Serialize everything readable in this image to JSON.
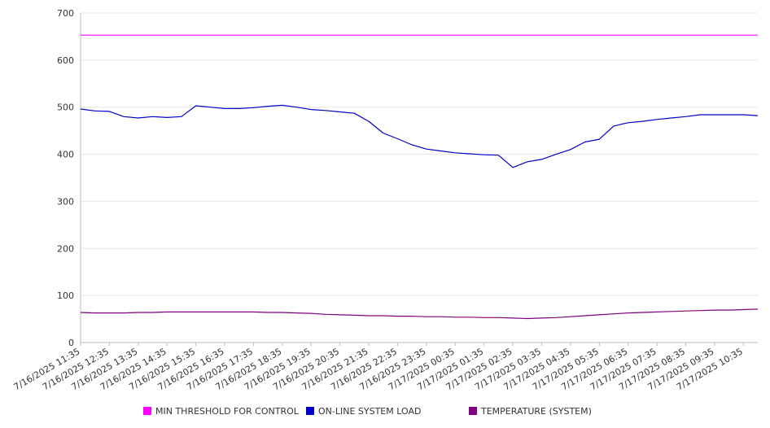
{
  "chart_data": {
    "type": "line",
    "ylim": [
      0,
      700
    ],
    "y_ticks": [
      0,
      100,
      200,
      300,
      400,
      500,
      600,
      700
    ],
    "x_tick_labels": [
      "7/16/2025 11:35",
      "7/16/2025 12:35",
      "7/16/2025 13:35",
      "7/16/2025 14:35",
      "7/16/2025 15:35",
      "7/16/2025 16:35",
      "7/16/2025 17:35",
      "7/16/2025 18:35",
      "7/16/2025 19:35",
      "7/16/2025 20:35",
      "7/16/2025 21:35",
      "7/16/2025 22:35",
      "7/16/2025 23:35",
      "7/17/2025 00:35",
      "7/17/2025 01:35",
      "7/17/2025 02:35",
      "7/17/2025 03:35",
      "7/17/2025 04:35",
      "7/17/2025 05:35",
      "7/17/2025 06:35",
      "7/17/2025 07:35",
      "7/17/2025 08:35",
      "7/17/2025 09:35",
      "7/17/2025 10:35"
    ],
    "x": [
      "7/16/2025 11:35",
      "7/16/2025 12:05",
      "7/16/2025 12:35",
      "7/16/2025 13:05",
      "7/16/2025 13:35",
      "7/16/2025 14:05",
      "7/16/2025 14:35",
      "7/16/2025 15:05",
      "7/16/2025 15:35",
      "7/16/2025 16:05",
      "7/16/2025 16:35",
      "7/16/2025 17:05",
      "7/16/2025 17:35",
      "7/16/2025 18:05",
      "7/16/2025 18:35",
      "7/16/2025 19:05",
      "7/16/2025 19:35",
      "7/16/2025 20:05",
      "7/16/2025 20:35",
      "7/16/2025 21:05",
      "7/16/2025 21:35",
      "7/16/2025 22:05",
      "7/16/2025 22:35",
      "7/16/2025 23:05",
      "7/16/2025 23:35",
      "7/17/2025 00:05",
      "7/17/2025 00:35",
      "7/17/2025 01:05",
      "7/17/2025 01:35",
      "7/17/2025 02:05",
      "7/17/2025 02:35",
      "7/17/2025 03:05",
      "7/17/2025 03:35",
      "7/17/2025 04:05",
      "7/17/2025 04:35",
      "7/17/2025 05:05",
      "7/17/2025 05:35",
      "7/17/2025 06:05",
      "7/17/2025 06:35",
      "7/17/2025 07:05",
      "7/17/2025 07:35",
      "7/17/2025 08:05",
      "7/17/2025 08:35",
      "7/17/2025 09:05",
      "7/17/2025 09:35",
      "7/17/2025 10:05",
      "7/17/2025 10:35",
      "7/17/2025 11:05"
    ],
    "series": [
      {
        "name": "MIN THRESHOLD FOR CONTROL",
        "color": "#ff00ff",
        "values": [
          653,
          653,
          653,
          653,
          653,
          653,
          653,
          653,
          653,
          653,
          653,
          653,
          653,
          653,
          653,
          653,
          653,
          653,
          653,
          653,
          653,
          653,
          653,
          653,
          653,
          653,
          653,
          653,
          653,
          653,
          653,
          653,
          653,
          653,
          653,
          653,
          653,
          653,
          653,
          653,
          653,
          653,
          653,
          653,
          653,
          653,
          653,
          653
        ]
      },
      {
        "name": "ON-LINE SYSTEM LOAD",
        "color": "#0000cc",
        "values": [
          496,
          492,
          491,
          480,
          477,
          480,
          478,
          480,
          503,
          500,
          497,
          497,
          499,
          502,
          504,
          500,
          495,
          493,
          490,
          487,
          470,
          445,
          433,
          420,
          411,
          407,
          403,
          401,
          399,
          398,
          372,
          384,
          389,
          400,
          410,
          426,
          432,
          460,
          467,
          470,
          474,
          477,
          480,
          484,
          484,
          484,
          484,
          482
        ]
      },
      {
        "name": "TEMPERATURE (SYSTEM)",
        "color": "#800080",
        "values": [
          64,
          63,
          63,
          63,
          64,
          64,
          65,
          65,
          65,
          65,
          65,
          65,
          65,
          64,
          64,
          63,
          62,
          60,
          59,
          58,
          57,
          57,
          56,
          56,
          55,
          55,
          54,
          54,
          53,
          53,
          52,
          51,
          52,
          53,
          55,
          57,
          59,
          61,
          63,
          64,
          65,
          66,
          67,
          68,
          69,
          69,
          70,
          71
        ]
      }
    ],
    "grid": true,
    "legend_placement": "bottom"
  }
}
